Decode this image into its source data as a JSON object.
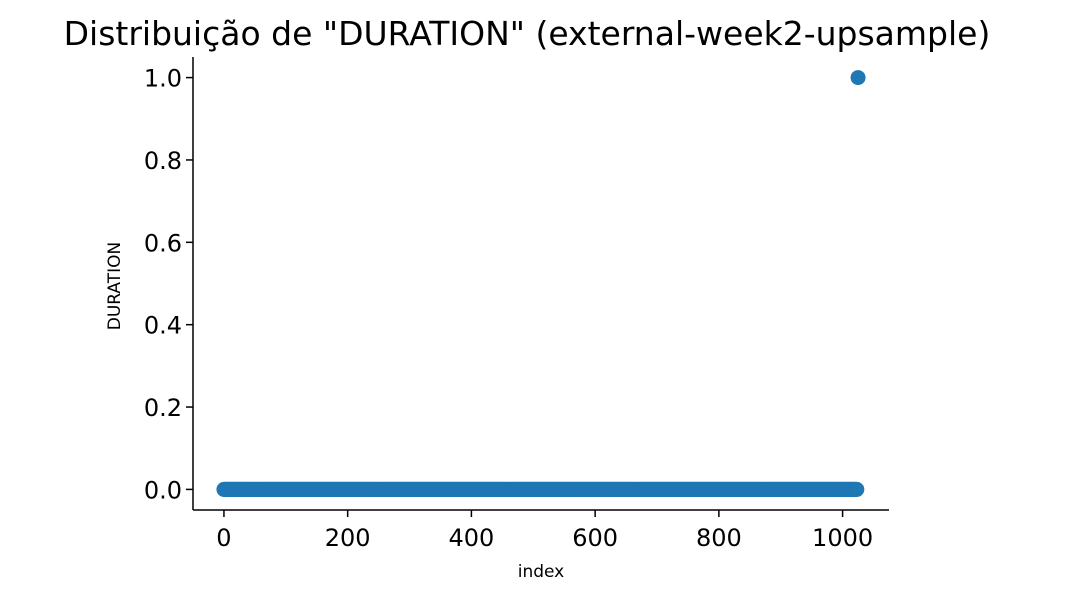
{
  "chart_data": {
    "type": "scatter",
    "title": "Distribuição de \"DURATION\" (external-week2-upsample)",
    "xlabel": "index",
    "ylabel": "DURATION",
    "xlim": [
      -50,
      1075
    ],
    "ylim": [
      -0.05,
      1.05
    ],
    "xticks": [
      0,
      200,
      400,
      600,
      800,
      1000
    ],
    "yticks": [
      0.0,
      0.2,
      0.4,
      0.6,
      0.8,
      1.0
    ],
    "xtick_labels": [
      "0",
      "200",
      "400",
      "600",
      "800",
      "1000"
    ],
    "ytick_labels": [
      "0.0",
      "0.2",
      "0.4",
      "0.6",
      "0.8",
      "1.0"
    ],
    "series": [
      {
        "color": "#1f77b4",
        "marker": "circle",
        "x_range": [
          0,
          1023
        ],
        "y_constant": 0.0,
        "extra_points": [
          [
            1025,
            1.0
          ]
        ]
      }
    ],
    "spines": "left-bottom",
    "grid": false
  }
}
